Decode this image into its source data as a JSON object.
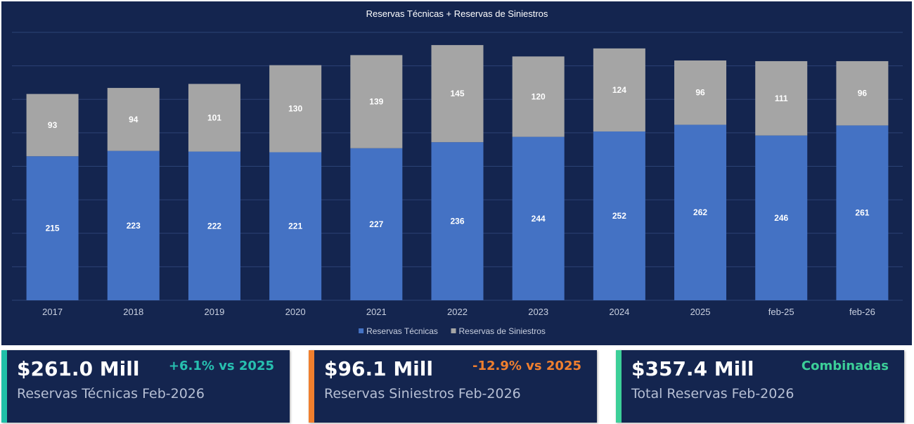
{
  "chart_data": {
    "type": "bar",
    "stacked": true,
    "title": "Reservas Técnicas + Reservas de Siniestros",
    "categories": [
      "2017",
      "2018",
      "2019",
      "2020",
      "2021",
      "2022",
      "2023",
      "2024",
      "2025",
      "feb-25",
      "feb-26"
    ],
    "series": [
      {
        "name": "Reservas Técnicas",
        "color": "#4472c4",
        "values": [
          215,
          223,
          222,
          221,
          227,
          236,
          244,
          252,
          262,
          246,
          261
        ]
      },
      {
        "name": "Reservas de Siniestros",
        "color": "#a5a5a5",
        "values": [
          93,
          94,
          101,
          130,
          139,
          145,
          120,
          124,
          96,
          111,
          96
        ]
      }
    ],
    "ylim": [
      0,
      400
    ],
    "grid": true,
    "legend_position": "bottom"
  },
  "cards": [
    {
      "value": "$261.0 Mill",
      "tag": "+6.1% vs 2025",
      "tag_color": "#27c0b0",
      "label": "Reservas Técnicas Feb-2026",
      "accent": "#1fc0a8"
    },
    {
      "value": "$96.1 Mill",
      "tag": "-12.9% vs 2025",
      "tag_color": "#f07f2e",
      "label": "Reservas Siniestros Feb-2026",
      "accent": "#f07f2e"
    },
    {
      "value": "$357.4 Mill",
      "tag": "Combinadas",
      "tag_color": "#3ccf98",
      "label": "Total Reservas Feb-2026",
      "accent": "#3ccf98"
    }
  ],
  "colors": {
    "panel_bg": "#14254f",
    "gridline": "#2c4275",
    "axis_text": "#c9d0e0"
  }
}
